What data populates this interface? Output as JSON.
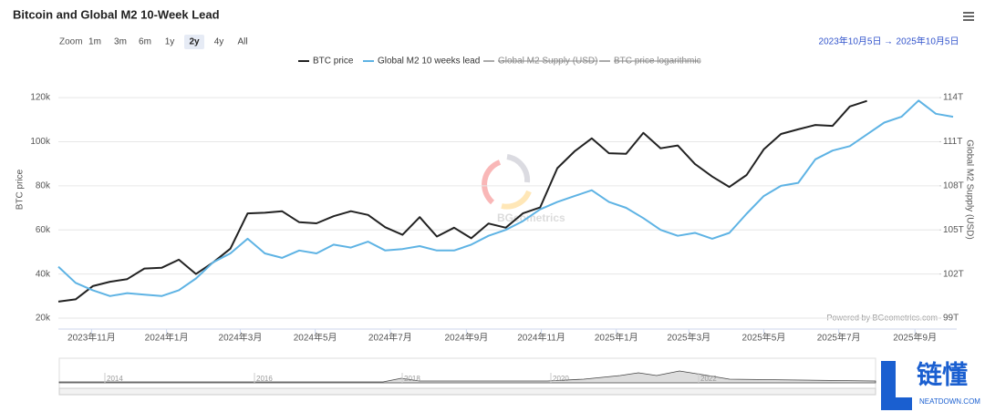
{
  "chart_data": {
    "type": "line",
    "title": "Bitcoin and Global M2 10-Week Lead",
    "y_label": "BTC price",
    "y2_label": "Global M2 Supply (USD)",
    "credits": "Powered by BGeometrics.com",
    "watermark": "BGeometrics",
    "x": [
      "2023-10-05",
      "2023-10-19",
      "2023-11-02",
      "2023-11-16",
      "2023-11-30",
      "2023-12-14",
      "2023-12-28",
      "2024-01-11",
      "2024-01-25",
      "2024-02-08",
      "2024-02-22",
      "2024-03-07",
      "2024-03-21",
      "2024-04-04",
      "2024-04-18",
      "2024-05-02",
      "2024-05-16",
      "2024-05-30",
      "2024-06-13",
      "2024-06-27",
      "2024-07-11",
      "2024-07-25",
      "2024-08-08",
      "2024-08-22",
      "2024-09-05",
      "2024-09-19",
      "2024-10-03",
      "2024-10-17",
      "2024-10-31",
      "2024-11-14",
      "2024-11-28",
      "2024-12-12",
      "2024-12-26",
      "2025-01-09",
      "2025-01-23",
      "2025-02-06",
      "2025-02-20",
      "2025-03-06",
      "2025-03-20",
      "2025-04-03",
      "2025-04-17",
      "2025-05-01",
      "2025-05-15",
      "2025-05-29",
      "2025-06-12",
      "2025-06-26",
      "2025-07-10",
      "2025-07-24",
      "2025-08-07",
      "2025-08-21",
      "2025-09-04",
      "2025-09-18",
      "2025-10-02"
    ],
    "series": [
      {
        "name": "BTC price",
        "color": "#222222",
        "axis": "y",
        "visible": true,
        "values": [
          27500,
          28500,
          34500,
          36500,
          37700,
          42500,
          42800,
          46500,
          40000,
          45300,
          51500,
          67500,
          67800,
          68500,
          63500,
          63000,
          66200,
          68500,
          66800,
          61200,
          57800,
          65800,
          57000,
          61000,
          56200,
          62900,
          61000,
          67500,
          70200,
          88000,
          95600,
          101500,
          94800,
          94500,
          104000,
          97000,
          98300,
          89900,
          84200,
          79500,
          84900,
          96500,
          103500,
          105600,
          107600,
          107200,
          116000,
          118500,
          null,
          null,
          null,
          null,
          null
        ]
      },
      {
        "name": "Global M2 10 weeks lead",
        "color": "#5eb3e4",
        "axis": "y2",
        "visible": true,
        "values": [
          102.5,
          101.4,
          100.9,
          100.5,
          100.7,
          100.6,
          100.5,
          100.9,
          101.7,
          102.8,
          103.4,
          104.4,
          103.4,
          103.1,
          103.6,
          103.4,
          104.0,
          103.8,
          104.2,
          103.6,
          103.7,
          103.9,
          103.6,
          103.6,
          104.0,
          104.6,
          105.0,
          105.6,
          106.4,
          106.9,
          107.3,
          107.7,
          106.9,
          106.5,
          105.8,
          105.0,
          104.6,
          104.8,
          104.4,
          104.8,
          106.1,
          107.3,
          108.0,
          108.2,
          109.8,
          110.4,
          110.7,
          111.5,
          112.3,
          112.7,
          113.8,
          112.9,
          112.7
        ]
      },
      {
        "name": "Global M2 Supply (USD)",
        "color": "#333333",
        "axis": "y2",
        "visible": false
      },
      {
        "name": "BTC price logarithmic",
        "color": "#333333",
        "axis": "y",
        "visible": false
      }
    ],
    "xlim": [
      "2023-10-05",
      "2025-10-05"
    ],
    "xticks": [
      {
        "value": "2023-11-01",
        "label": "2023年11月"
      },
      {
        "value": "2024-01-01",
        "label": "2024年1月"
      },
      {
        "value": "2024-03-01",
        "label": "2024年3月"
      },
      {
        "value": "2024-05-01",
        "label": "2024年5月"
      },
      {
        "value": "2024-07-01",
        "label": "2024年7月"
      },
      {
        "value": "2024-09-01",
        "label": "2024年9月"
      },
      {
        "value": "2024-11-01",
        "label": "2024年11月"
      },
      {
        "value": "2025-01-01",
        "label": "2025年1月"
      },
      {
        "value": "2025-03-01",
        "label": "2025年3月"
      },
      {
        "value": "2025-05-01",
        "label": "2025年5月"
      },
      {
        "value": "2025-07-01",
        "label": "2025年7月"
      },
      {
        "value": "2025-09-01",
        "label": "2025年9月"
      }
    ],
    "ylim": [
      20000,
      125000
    ],
    "yticks": [
      {
        "value": 20000,
        "label": "20k"
      },
      {
        "value": 40000,
        "label": "40k"
      },
      {
        "value": 60000,
        "label": "60k"
      },
      {
        "value": 80000,
        "label": "80k"
      },
      {
        "value": 100000,
        "label": "100k"
      },
      {
        "value": 120000,
        "label": "120k"
      }
    ],
    "y2lim": [
      99,
      114.75
    ],
    "y2ticks": [
      {
        "value": 99,
        "label": "99T"
      },
      {
        "value": 102,
        "label": "102T"
      },
      {
        "value": 105,
        "label": "105T"
      },
      {
        "value": 108,
        "label": "108T"
      },
      {
        "value": 111,
        "label": "111T"
      },
      {
        "value": 114,
        "label": "114T"
      }
    ],
    "grid": true,
    "legend": "top"
  },
  "toolbar": {
    "zoom_label": "Zoom",
    "buttons": [
      "1m",
      "3m",
      "6m",
      "1y",
      "2y",
      "4y",
      "All"
    ],
    "range_from": "2023年10月5日",
    "range_arrow": "→",
    "range_to": "2025年10月5日"
  },
  "navigator": {
    "labels": [
      "2014",
      "2016",
      "2018",
      "2020",
      "2022"
    ]
  },
  "branding": {
    "name": "链懂",
    "site": "NEATDOWN.COM"
  }
}
